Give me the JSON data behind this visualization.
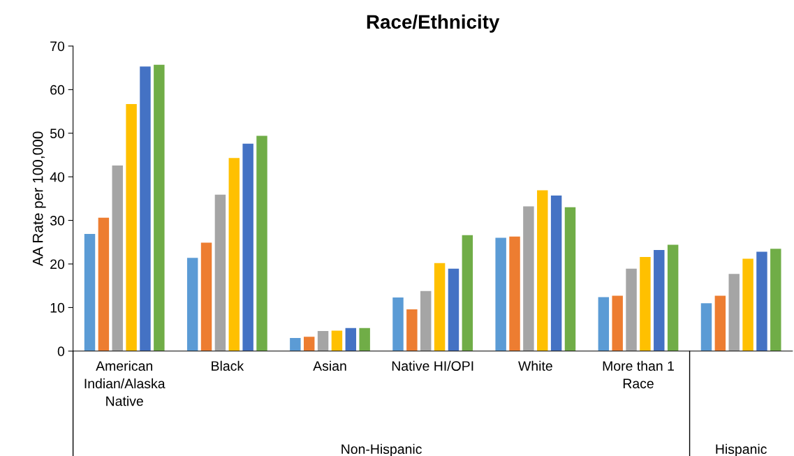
{
  "chart_data": {
    "type": "bar",
    "title": "Race/Ethnicity",
    "ylabel": "AA Rate per 100,000",
    "categories": [
      "American Indian/Alaska Native",
      "Black",
      "Asian",
      "Native HI/OPI",
      "White",
      "More than 1 Race",
      null
    ],
    "series": [
      {
        "color": "#5b9bd5",
        "values": [
          26.9,
          21.4,
          3.0,
          12.3,
          26.0,
          12.4,
          11.0
        ]
      },
      {
        "color": "#ed7d31",
        "values": [
          30.6,
          24.9,
          3.3,
          9.6,
          26.3,
          12.7,
          12.7
        ]
      },
      {
        "color": "#a5a5a5",
        "values": [
          42.6,
          35.9,
          4.6,
          13.8,
          33.2,
          18.9,
          17.7
        ]
      },
      {
        "color": "#ffc000",
        "values": [
          56.7,
          44.3,
          4.7,
          20.2,
          36.9,
          21.6,
          21.2
        ]
      },
      {
        "color": "#4472c4",
        "values": [
          65.3,
          47.6,
          5.3,
          18.9,
          35.7,
          23.2,
          22.8
        ]
      },
      {
        "color": "#70ad47",
        "values": [
          65.7,
          49.4,
          5.3,
          26.6,
          33.0,
          24.4,
          23.5
        ]
      }
    ],
    "annotations": [
      "Non-Hispanic",
      "Hispanic"
    ],
    "ylim": [
      0,
      70
    ],
    "yticks": [
      0,
      10,
      20,
      30,
      40,
      50,
      60,
      70
    ],
    "grid": false,
    "legend": false
  }
}
